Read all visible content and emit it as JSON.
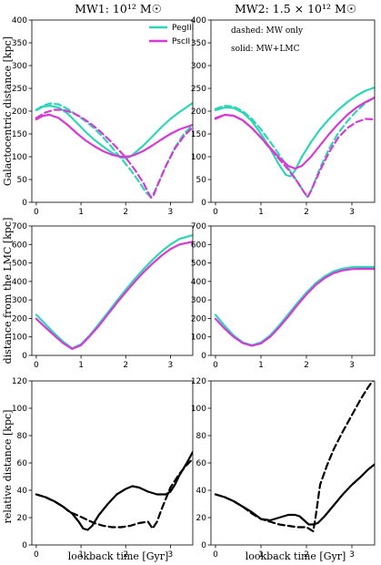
{
  "colors": {
    "PegIII": "#2ed6b5",
    "PscII": "#d63ad4",
    "black": "#000000"
  },
  "chart_data": [
    {
      "type": "line",
      "title": "MW1: 10¹² M☉",
      "ylabel": "Galactocentric distance [kpc]",
      "xlabel": "",
      "xlim": [
        -0.1,
        3.5
      ],
      "ylim": [
        0,
        400
      ],
      "xticks": [
        "0",
        "1",
        "2",
        "3"
      ],
      "yticks": [
        "0",
        "50",
        "100",
        "150",
        "200",
        "250",
        "300",
        "350",
        "400"
      ],
      "legend": {
        "position": "top-right",
        "entries": [
          {
            "name": "PegIII",
            "color": "#2ed6b5"
          },
          {
            "name": "PscII",
            "color": "#d63ad4"
          }
        ]
      },
      "series": [
        {
          "name": "PegIII",
          "style": "solid",
          "color": "#2ed6b5",
          "x": [
            0,
            0.15,
            0.3,
            0.5,
            0.7,
            0.9,
            1.1,
            1.3,
            1.5,
            1.7,
            1.9,
            2.0,
            2.1,
            2.2,
            2.4,
            2.6,
            2.8,
            3.0,
            3.2,
            3.5
          ],
          "y": [
            202,
            210,
            212,
            208,
            195,
            175,
            155,
            137,
            122,
            108,
            98,
            97,
            100,
            108,
            125,
            145,
            165,
            183,
            198,
            218
          ]
        },
        {
          "name": "PegIII",
          "style": "dashed",
          "color": "#2ed6b5",
          "x": [
            0,
            0.15,
            0.3,
            0.5,
            0.7,
            0.9,
            1.1,
            1.3,
            1.5,
            1.7,
            1.9,
            2.1,
            2.3,
            2.45,
            2.55,
            2.6,
            2.7,
            2.9,
            3.1,
            3.3,
            3.5
          ],
          "y": [
            203,
            212,
            217,
            215,
            205,
            192,
            178,
            162,
            142,
            120,
            96,
            72,
            45,
            22,
            12,
            15,
            35,
            80,
            120,
            150,
            170
          ]
        },
        {
          "name": "PscII",
          "style": "solid",
          "color": "#d63ad4",
          "x": [
            0,
            0.15,
            0.3,
            0.5,
            0.7,
            0.9,
            1.1,
            1.3,
            1.5,
            1.7,
            1.9,
            2.1,
            2.2,
            2.4,
            2.6,
            2.8,
            3.0,
            3.2,
            3.5
          ],
          "y": [
            182,
            190,
            192,
            185,
            170,
            152,
            136,
            123,
            112,
            104,
            100,
            101,
            104,
            113,
            125,
            138,
            150,
            160,
            170
          ]
        },
        {
          "name": "PscII",
          "style": "dashed",
          "color": "#d63ad4",
          "x": [
            0,
            0.2,
            0.4,
            0.6,
            0.8,
            1.0,
            1.2,
            1.4,
            1.6,
            1.8,
            2.0,
            2.2,
            2.4,
            2.5,
            2.57,
            2.62,
            2.7,
            2.9,
            3.1,
            3.3,
            3.5
          ],
          "y": [
            185,
            197,
            203,
            203,
            197,
            187,
            174,
            158,
            140,
            120,
            98,
            72,
            42,
            22,
            10,
            14,
            35,
            80,
            118,
            145,
            165
          ]
        }
      ]
    },
    {
      "type": "line",
      "title": "MW2: 1.5 × 10¹² M☉",
      "ylabel": "",
      "xlabel": "",
      "xlim": [
        -0.1,
        3.5
      ],
      "ylim": [
        0,
        400
      ],
      "xticks": [
        "0",
        "1",
        "2",
        "3"
      ],
      "yticks": [
        "0",
        "50",
        "100",
        "150",
        "200",
        "250",
        "300",
        "350",
        "400"
      ],
      "annotations": [
        "dashed: MW only",
        "solid: MW+LMC"
      ],
      "series": [
        {
          "name": "PegIII",
          "style": "solid",
          "color": "#2ed6b5",
          "x": [
            0,
            0.2,
            0.4,
            0.6,
            0.8,
            1.0,
            1.2,
            1.4,
            1.55,
            1.65,
            1.75,
            1.9,
            2.1,
            2.3,
            2.5,
            2.7,
            2.9,
            3.1,
            3.3,
            3.5
          ],
          "y": [
            202,
            208,
            207,
            197,
            178,
            150,
            118,
            82,
            60,
            57,
            70,
            100,
            132,
            160,
            183,
            203,
            220,
            234,
            245,
            252
          ]
        },
        {
          "name": "PegIII",
          "style": "dashed",
          "color": "#2ed6b5",
          "x": [
            0,
            0.2,
            0.4,
            0.6,
            0.8,
            1.0,
            1.2,
            1.4,
            1.6,
            1.8,
            1.95,
            2.02,
            2.1,
            2.3,
            2.5,
            2.7,
            2.9,
            3.1,
            3.3,
            3.5
          ],
          "y": [
            205,
            212,
            210,
            200,
            183,
            160,
            133,
            105,
            75,
            45,
            22,
            12,
            25,
            75,
            118,
            152,
            178,
            200,
            218,
            230
          ]
        },
        {
          "name": "PscII",
          "style": "solid",
          "color": "#d63ad4",
          "x": [
            0,
            0.2,
            0.4,
            0.6,
            0.8,
            1.0,
            1.2,
            1.4,
            1.6,
            1.75,
            1.9,
            2.1,
            2.3,
            2.5,
            2.7,
            2.9,
            3.1,
            3.3,
            3.5
          ],
          "y": [
            183,
            192,
            190,
            180,
            163,
            142,
            120,
            98,
            80,
            74,
            80,
            100,
            125,
            150,
            172,
            192,
            208,
            220,
            230
          ]
        },
        {
          "name": "PscII",
          "style": "dashed",
          "color": "#d63ad4",
          "x": [
            0,
            0.2,
            0.4,
            0.6,
            0.8,
            1.0,
            1.2,
            1.4,
            1.6,
            1.8,
            1.95,
            2.03,
            2.1,
            2.3,
            2.5,
            2.7,
            2.9,
            3.1,
            3.3,
            3.5
          ],
          "y": [
            185,
            192,
            190,
            180,
            163,
            142,
            118,
            95,
            72,
            45,
            22,
            12,
            25,
            70,
            110,
            142,
            163,
            176,
            183,
            182
          ]
        }
      ]
    },
    {
      "type": "line",
      "title": "",
      "ylabel": "distance from the LMC [kpc]",
      "xlabel": "",
      "xlim": [
        -0.1,
        3.5
      ],
      "ylim": [
        0,
        700
      ],
      "xticks": [
        "0",
        "1",
        "2",
        "3"
      ],
      "yticks": [
        "0",
        "100",
        "200",
        "300",
        "400",
        "500",
        "600",
        "700"
      ],
      "series": [
        {
          "name": "PegIII",
          "style": "solid",
          "color": "#2ed6b5",
          "x": [
            0,
            0.2,
            0.4,
            0.6,
            0.8,
            1.0,
            1.2,
            1.4,
            1.6,
            1.8,
            2.0,
            2.2,
            2.4,
            2.6,
            2.8,
            3.0,
            3.2,
            3.5
          ],
          "y": [
            220,
            170,
            120,
            75,
            38,
            60,
            110,
            170,
            232,
            295,
            355,
            413,
            467,
            517,
            562,
            600,
            630,
            650
          ]
        },
        {
          "name": "PscII",
          "style": "solid",
          "color": "#d63ad4",
          "x": [
            0,
            0.2,
            0.4,
            0.6,
            0.8,
            1.0,
            1.2,
            1.4,
            1.6,
            1.8,
            2.0,
            2.2,
            2.4,
            2.6,
            2.8,
            3.0,
            3.2,
            3.5
          ],
          "y": [
            198,
            152,
            108,
            66,
            35,
            55,
            105,
            160,
            222,
            283,
            342,
            398,
            450,
            497,
            540,
            575,
            600,
            615
          ]
        }
      ]
    },
    {
      "type": "line",
      "title": "",
      "ylabel": "",
      "xlabel": "",
      "xlim": [
        -0.1,
        3.5
      ],
      "ylim": [
        0,
        700
      ],
      "xticks": [
        "0",
        "1",
        "2",
        "3"
      ],
      "yticks": [
        "0",
        "100",
        "200",
        "300",
        "400",
        "500",
        "600",
        "700"
      ],
      "series": [
        {
          "name": "PegIII",
          "style": "solid",
          "color": "#2ed6b5",
          "x": [
            0,
            0.2,
            0.4,
            0.6,
            0.8,
            1.0,
            1.2,
            1.4,
            1.6,
            1.8,
            2.0,
            2.2,
            2.4,
            2.6,
            2.8,
            3.0,
            3.2,
            3.5
          ],
          "y": [
            220,
            160,
            108,
            70,
            55,
            70,
            108,
            162,
            222,
            283,
            340,
            390,
            428,
            455,
            470,
            477,
            479,
            478
          ]
        },
        {
          "name": "PscII",
          "style": "solid",
          "color": "#d63ad4",
          "x": [
            0,
            0.2,
            0.4,
            0.6,
            0.8,
            1.0,
            1.2,
            1.4,
            1.6,
            1.8,
            2.0,
            2.2,
            2.4,
            2.6,
            2.8,
            3.0,
            3.2,
            3.5
          ],
          "y": [
            198,
            145,
            100,
            67,
            52,
            65,
            100,
            152,
            210,
            272,
            330,
            380,
            418,
            445,
            460,
            467,
            469,
            468
          ]
        }
      ]
    },
    {
      "type": "line",
      "title": "",
      "ylabel": "relative distance [kpc]",
      "xlabel": "lookback time [Gyr]",
      "xlim": [
        -0.1,
        3.5
      ],
      "ylim": [
        0,
        120
      ],
      "xticks": [
        "0",
        "1",
        "2",
        "3"
      ],
      "yticks": [
        "0",
        "20",
        "40",
        "60",
        "80",
        "100",
        "120"
      ],
      "series": [
        {
          "name": "MW+LMC",
          "style": "solid",
          "color": "#000000",
          "x": [
            0,
            0.2,
            0.4,
            0.6,
            0.8,
            0.95,
            1.05,
            1.15,
            1.25,
            1.4,
            1.6,
            1.8,
            2.0,
            2.15,
            2.3,
            2.5,
            2.7,
            2.9,
            3.0,
            3.1,
            3.2,
            3.35,
            3.5
          ],
          "y": [
            37,
            35,
            32,
            28,
            23,
            17,
            12,
            11,
            14,
            22,
            30,
            37,
            41,
            43,
            42,
            39,
            37,
            37,
            39,
            44,
            51,
            59,
            68
          ]
        },
        {
          "name": "MW only",
          "style": "dashed",
          "color": "#000000",
          "x": [
            0,
            0.2,
            0.4,
            0.6,
            0.75,
            0.9,
            1.1,
            1.3,
            1.5,
            1.7,
            1.9,
            2.1,
            2.3,
            2.5,
            2.6,
            2.7,
            2.8,
            3.0,
            3.2,
            3.35,
            3.5
          ],
          "y": [
            37,
            35,
            32,
            28,
            24,
            22,
            19,
            16,
            14,
            13,
            13,
            14,
            16,
            17,
            12,
            17,
            26,
            42,
            52,
            58,
            63
          ]
        }
      ]
    },
    {
      "type": "line",
      "title": "",
      "ylabel": "",
      "xlabel": "lookback time [Gyr]",
      "xlim": [
        -0.1,
        3.5
      ],
      "ylim": [
        0,
        120
      ],
      "xticks": [
        "0",
        "1",
        "2",
        "3"
      ],
      "yticks": [
        "0",
        "20",
        "40",
        "60",
        "80",
        "100",
        "120"
      ],
      "series": [
        {
          "name": "MW+LMC",
          "style": "solid",
          "color": "#000000",
          "x": [
            0,
            0.2,
            0.4,
            0.6,
            0.8,
            1.0,
            1.2,
            1.4,
            1.6,
            1.75,
            1.85,
            1.95,
            2.05,
            2.15,
            2.25,
            2.4,
            2.6,
            2.8,
            3.0,
            3.2,
            3.35,
            3.5
          ],
          "y": [
            37,
            35,
            32,
            28,
            24,
            19,
            18,
            20,
            22,
            22,
            21,
            18,
            15,
            15,
            16,
            21,
            29,
            37,
            44,
            50,
            55,
            59
          ]
        },
        {
          "name": "MW only",
          "style": "dashed",
          "color": "#000000",
          "x": [
            0,
            0.2,
            0.4,
            0.6,
            0.8,
            1.0,
            1.2,
            1.4,
            1.6,
            1.8,
            2.0,
            2.1,
            2.15,
            2.2,
            2.3,
            2.45,
            2.6,
            2.8,
            3.0,
            3.2,
            3.35,
            3.5
          ],
          "y": [
            37,
            35,
            32,
            28,
            23,
            19,
            17,
            15,
            14,
            13,
            13,
            11,
            10,
            20,
            44,
            58,
            70,
            83,
            95,
            107,
            115,
            122
          ]
        }
      ]
    }
  ]
}
